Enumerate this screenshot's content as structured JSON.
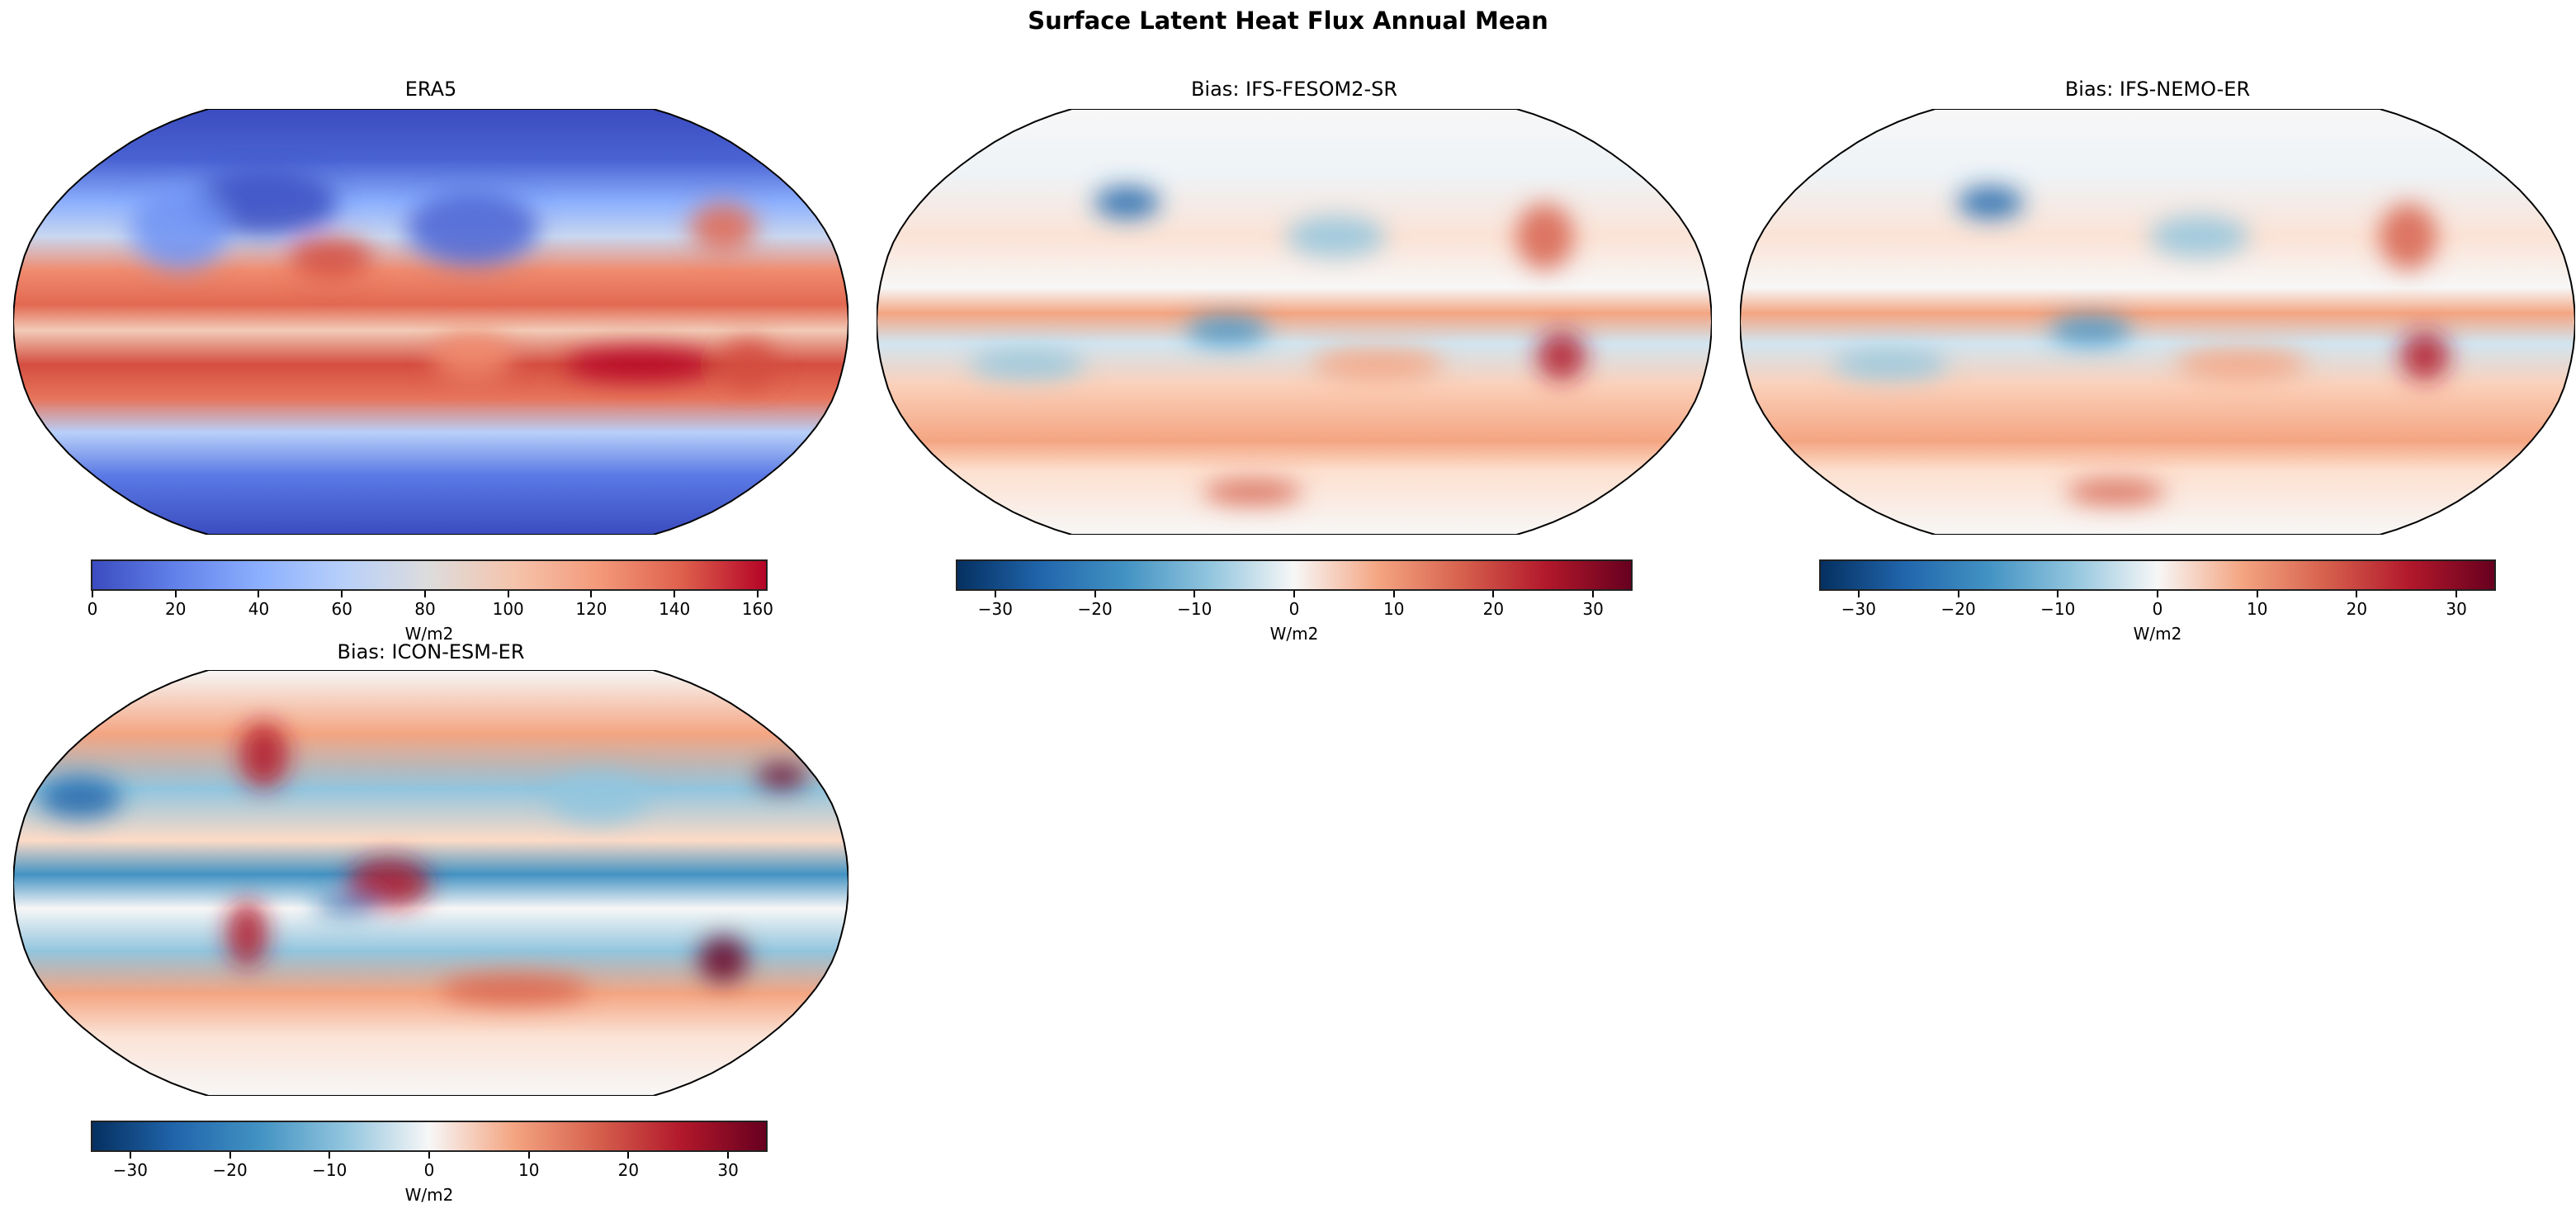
{
  "title": "Surface Latent Heat Flux Annual Mean",
  "panels": [
    {
      "title": "ERA5",
      "kind": "era5",
      "colorbar": {
        "label": "W/m2",
        "cmap": "coolwarm",
        "vmin": 0,
        "vmax": 162,
        "ticks": [
          0,
          20,
          40,
          60,
          80,
          100,
          120,
          140,
          160
        ],
        "tick_labels": [
          "0",
          "20",
          "40",
          "60",
          "80",
          "100",
          "120",
          "140",
          "160"
        ]
      }
    },
    {
      "title": "Bias: IFS-FESOM2-SR",
      "kind": "bias",
      "colorbar": {
        "label": "W/m2",
        "cmap": "RdBu_r",
        "vmin": -33.8,
        "vmax": 33.8,
        "ticks": [
          -30,
          -20,
          -10,
          0,
          10,
          20,
          30
        ],
        "tick_labels": [
          "−30",
          "−20",
          "−10",
          "0",
          "10",
          "20",
          "30"
        ]
      }
    },
    {
      "title": "Bias: IFS-NEMO-ER",
      "kind": "bias",
      "colorbar": {
        "label": "W/m2",
        "cmap": "RdBu_r",
        "vmin": -33.8,
        "vmax": 33.8,
        "ticks": [
          -30,
          -20,
          -10,
          0,
          10,
          20,
          30
        ],
        "tick_labels": [
          "−30",
          "−20",
          "−10",
          "0",
          "10",
          "20",
          "30"
        ]
      }
    },
    {
      "title": "Bias: ICON-ESM-ER",
      "kind": "bias-strong",
      "colorbar": {
        "label": "W/m2",
        "cmap": "RdBu_r",
        "vmin": -33.8,
        "vmax": 33.8,
        "ticks": [
          -30,
          -20,
          -10,
          0,
          10,
          20,
          30
        ],
        "tick_labels": [
          "−30",
          "−20",
          "−10",
          "0",
          "10",
          "20",
          "30"
        ]
      }
    }
  ]
}
